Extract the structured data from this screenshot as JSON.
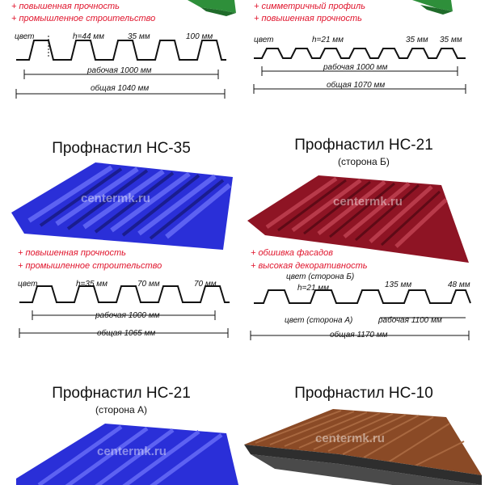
{
  "watermark": "centermk.ru",
  "colors": {
    "green": "#2e8f3a",
    "blue": "#2a2fd8",
    "red": "#8e1424",
    "brown": "#8a4a26",
    "feature": "#e0142c"
  },
  "top_left": {
    "features": [
      "повышенная прочность",
      "промышленное строительство"
    ],
    "labels": {
      "color": "цвет",
      "h": "h=44 мм",
      "a": "35 мм",
      "b": "100 мм",
      "work": "рабочая 1000 мм",
      "total": "общая 1040 мм"
    }
  },
  "top_right": {
    "features": [
      "симметричный профиль",
      "повышенная прочность"
    ],
    "labels": {
      "color": "цвет",
      "h": "h=21 мм",
      "a": "35 мм",
      "b": "35 мм",
      "work": "рабочая 1000 мм",
      "total": "общая 1070 мм"
    }
  },
  "mid_left": {
    "title": "Профнастил НС-35",
    "features": [
      "повышенная прочность",
      "промышленное строительство"
    ],
    "labels": {
      "color": "цвет",
      "h": "h=35 мм",
      "a": "70 мм",
      "b": "70 мм",
      "work": "рабочая 1000 мм",
      "total": "общая 1065 мм"
    }
  },
  "mid_right": {
    "title": "Профнастил НС-21",
    "subtitle": "(сторона Б)",
    "features": [
      "обшивка фасадов",
      "высокая декоративность"
    ],
    "labels": {
      "colorB": "цвет (сторона Б)",
      "h": "h=21 мм",
      "a": "135 мм",
      "b": "48 мм",
      "colorA": "цвет (сторона А)",
      "work": "рабочая 1100 мм",
      "total": "общая 1170 мм"
    }
  },
  "bottom_left": {
    "title": "Профнастил НС-21",
    "subtitle": "(сторона А)"
  },
  "bottom_right": {
    "title": "Профнастил НС-10"
  }
}
